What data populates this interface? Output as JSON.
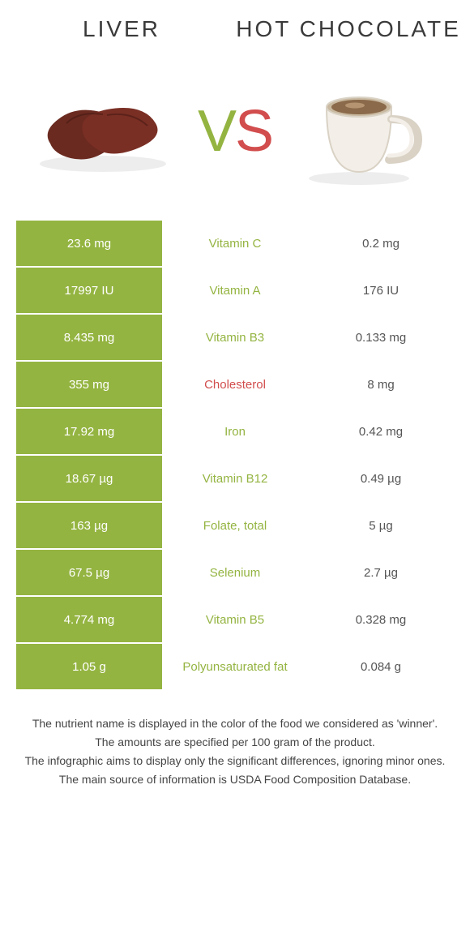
{
  "header": {
    "left": "Liver",
    "right": "Hot chocolate"
  },
  "vs": {
    "v": "V",
    "s": "S"
  },
  "colors": {
    "winner_bg": "#94b441",
    "loser_bg": "#ffffff",
    "green_txt": "#94b441",
    "red_txt": "#d24d4d",
    "body_txt": "#555555"
  },
  "table": {
    "type": "comparison-table",
    "rows": [
      {
        "left": "23.6 mg",
        "label": "Vitamin C",
        "right": "0.2 mg",
        "winner": "left",
        "label_color": "green"
      },
      {
        "left": "17997 IU",
        "label": "Vitamin A",
        "right": "176 IU",
        "winner": "left",
        "label_color": "green"
      },
      {
        "left": "8.435 mg",
        "label": "Vitamin B3",
        "right": "0.133 mg",
        "winner": "left",
        "label_color": "green"
      },
      {
        "left": "355 mg",
        "label": "Cholesterol",
        "right": "8 mg",
        "winner": "left",
        "label_color": "red"
      },
      {
        "left": "17.92 mg",
        "label": "Iron",
        "right": "0.42 mg",
        "winner": "left",
        "label_color": "green"
      },
      {
        "left": "18.67 µg",
        "label": "Vitamin B12",
        "right": "0.49 µg",
        "winner": "left",
        "label_color": "green"
      },
      {
        "left": "163 µg",
        "label": "Folate, total",
        "right": "5 µg",
        "winner": "left",
        "label_color": "green"
      },
      {
        "left": "67.5 µg",
        "label": "Selenium",
        "right": "2.7 µg",
        "winner": "left",
        "label_color": "green"
      },
      {
        "left": "4.774 mg",
        "label": "Vitamin B5",
        "right": "0.328 mg",
        "winner": "left",
        "label_color": "green"
      },
      {
        "left": "1.05 g",
        "label": "Polyunsaturated fat",
        "right": "0.084 g",
        "winner": "left",
        "label_color": "green"
      }
    ]
  },
  "footer": [
    "The nutrient name is displayed in the color of the food we considered as 'winner'.",
    "The amounts are specified per 100 gram of the product.",
    "The infographic aims to display only the significant differences, ignoring minor ones.",
    "The main source of information is USDA Food Composition Database."
  ]
}
